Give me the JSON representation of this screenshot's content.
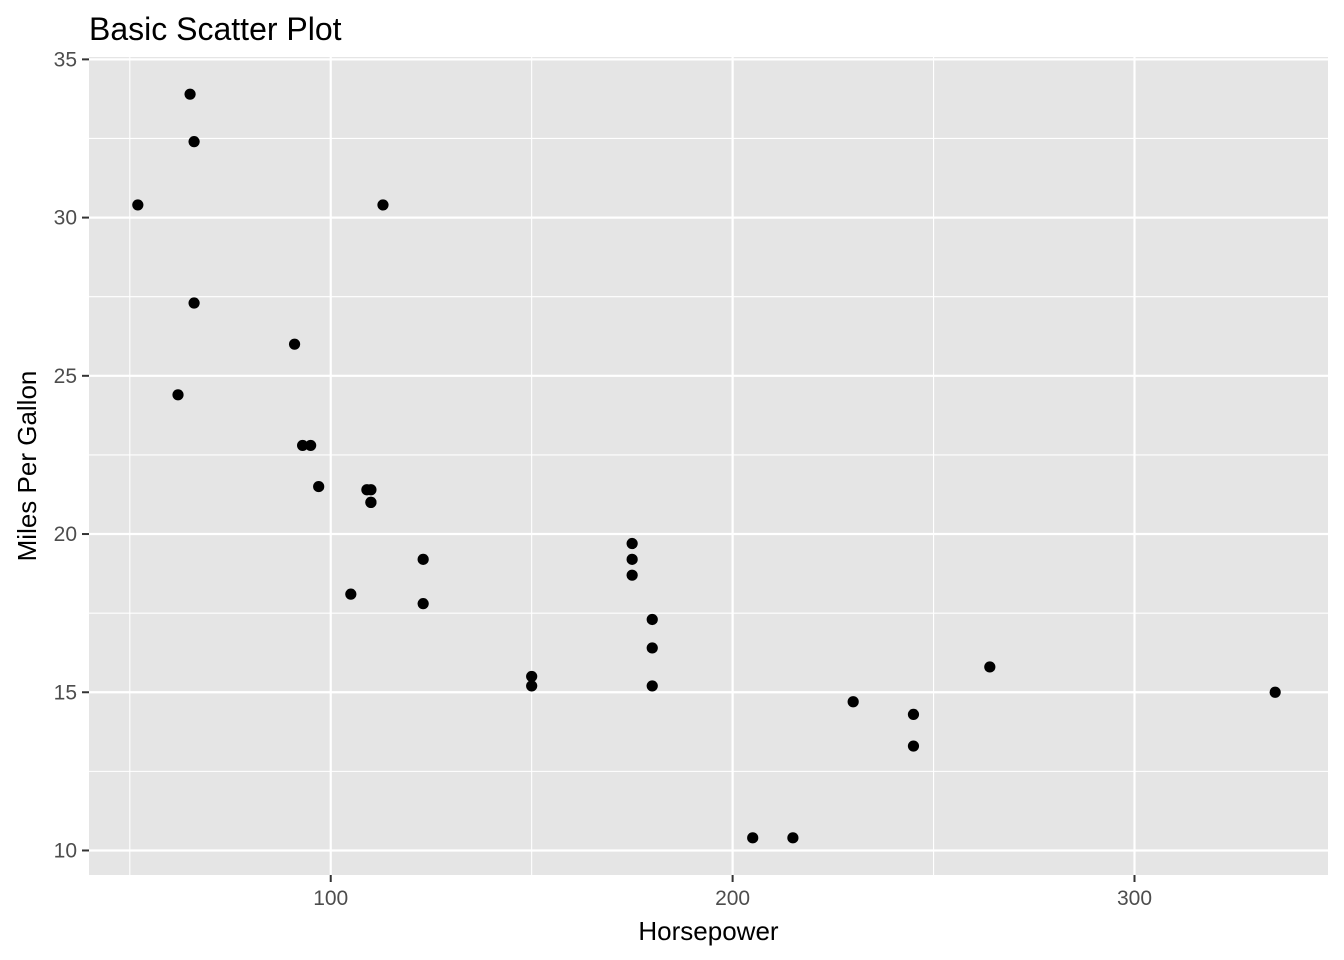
{
  "chart_data": {
    "type": "scatter",
    "title": "Basic Scatter Plot",
    "xlabel": "Horsepower",
    "ylabel": "Miles Per Gallon",
    "xlim": [
      39.85,
      348.15
    ],
    "ylim": [
      9.225,
      35.075
    ],
    "x_ticks": [
      100,
      200,
      300
    ],
    "x_tick_labels": [
      "100",
      "200",
      "300"
    ],
    "x_minor_ticks": [
      50,
      150,
      250
    ],
    "y_ticks": [
      10,
      15,
      20,
      25,
      30,
      35
    ],
    "y_tick_labels": [
      "10",
      "15",
      "20",
      "25",
      "30",
      "35"
    ],
    "y_minor_ticks": [
      12.5,
      17.5,
      22.5,
      27.5,
      32.5
    ],
    "grid": true,
    "legend": "none",
    "colors": {
      "panel_background": "#e5e5e5",
      "grid": "#ffffff",
      "point": "#000000",
      "tick": "#333333",
      "tick_label": "#4d4d4d"
    },
    "points": [
      {
        "x": 110,
        "y": 21.0
      },
      {
        "x": 110,
        "y": 21.0
      },
      {
        "x": 93,
        "y": 22.8
      },
      {
        "x": 110,
        "y": 21.4
      },
      {
        "x": 175,
        "y": 18.7
      },
      {
        "x": 105,
        "y": 18.1
      },
      {
        "x": 245,
        "y": 14.3
      },
      {
        "x": 62,
        "y": 24.4
      },
      {
        "x": 95,
        "y": 22.8
      },
      {
        "x": 123,
        "y": 19.2
      },
      {
        "x": 123,
        "y": 17.8
      },
      {
        "x": 180,
        "y": 16.4
      },
      {
        "x": 180,
        "y": 17.3
      },
      {
        "x": 180,
        "y": 15.2
      },
      {
        "x": 205,
        "y": 10.4
      },
      {
        "x": 215,
        "y": 10.4
      },
      {
        "x": 230,
        "y": 14.7
      },
      {
        "x": 66,
        "y": 32.4
      },
      {
        "x": 52,
        "y": 30.4
      },
      {
        "x": 65,
        "y": 33.9
      },
      {
        "x": 97,
        "y": 21.5
      },
      {
        "x": 150,
        "y": 15.5
      },
      {
        "x": 150,
        "y": 15.2
      },
      {
        "x": 245,
        "y": 13.3
      },
      {
        "x": 175,
        "y": 19.2
      },
      {
        "x": 66,
        "y": 27.3
      },
      {
        "x": 91,
        "y": 26.0
      },
      {
        "x": 113,
        "y": 30.4
      },
      {
        "x": 264,
        "y": 15.8
      },
      {
        "x": 175,
        "y": 19.7
      },
      {
        "x": 335,
        "y": 15.0
      },
      {
        "x": 109,
        "y": 21.4
      }
    ]
  }
}
